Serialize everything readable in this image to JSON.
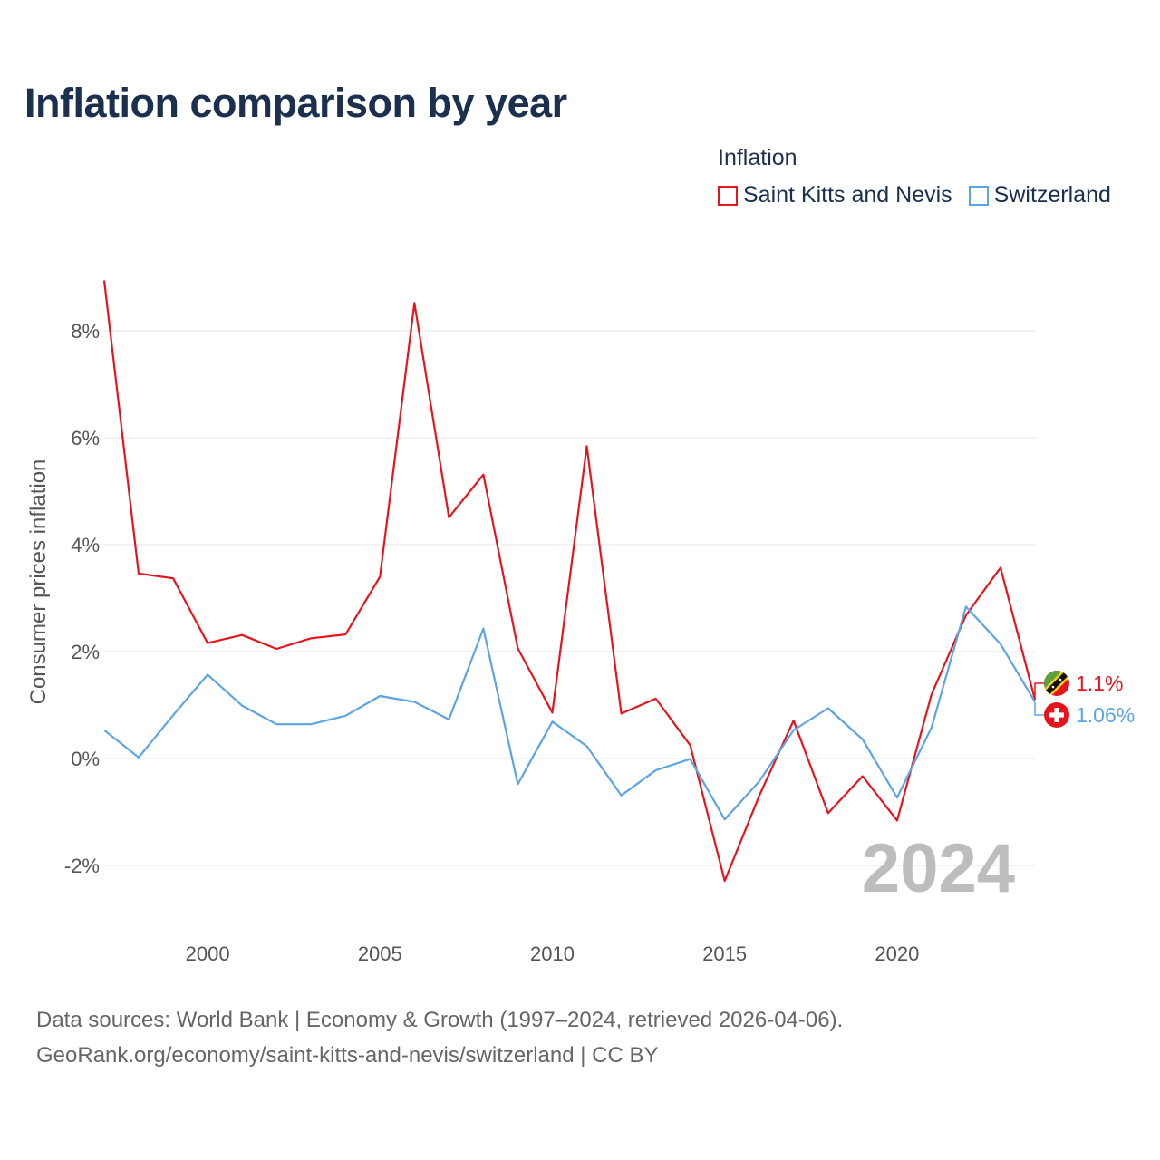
{
  "title": "Inflation comparison by year",
  "legend": {
    "title": "Inflation",
    "items": [
      {
        "label": "Saint Kitts and Nevis",
        "color": "#e8141c"
      },
      {
        "label": "Switzerland",
        "color": "#5ba4e5"
      }
    ]
  },
  "footer": {
    "line1": "Data sources: World Bank | Economy & Growth (1997–2024, retrieved 2026-04-06).",
    "line2": "GeoRank.org/economy/saint-kitts-and-nevis/switzerland | CC BY"
  },
  "chart_data": {
    "type": "line",
    "title": "Inflation comparison by year",
    "xlabel": "",
    "ylabel": "Consumer prices inflation",
    "x": [
      1997,
      1998,
      1999,
      2000,
      2001,
      2002,
      2003,
      2004,
      2005,
      2006,
      2007,
      2008,
      2009,
      2010,
      2011,
      2012,
      2013,
      2014,
      2015,
      2016,
      2017,
      2018,
      2019,
      2020,
      2021,
      2022,
      2023,
      2024
    ],
    "xlim": [
      1997,
      2024
    ],
    "ylim": [
      -3.0,
      9.0
    ],
    "xticks": [
      2000,
      2005,
      2010,
      2015,
      2020
    ],
    "xtick_labels": [
      "2000",
      "2005",
      "2010",
      "2015",
      "2020"
    ],
    "yticks": [
      -2,
      0,
      2,
      4,
      6,
      8
    ],
    "ytick_labels": [
      "-2%",
      "0%",
      "2%",
      "4%",
      "6%",
      "8%"
    ],
    "grid": true,
    "year_label": "2024",
    "series": [
      {
        "name": "Saint Kitts and Nevis",
        "color": "#e8141c",
        "end_label": "1.1%",
        "flag": "saint-kitts-and-nevis-flag",
        "values": [
          8.94,
          3.46,
          3.37,
          2.16,
          2.31,
          2.05,
          2.25,
          2.32,
          3.4,
          8.52,
          4.51,
          5.31,
          2.06,
          0.86,
          5.84,
          0.84,
          1.12,
          0.25,
          -2.29,
          -0.7,
          0.71,
          -1.02,
          -0.33,
          -1.16,
          1.2,
          2.68,
          3.57,
          1.1
        ]
      },
      {
        "name": "Switzerland",
        "color": "#5ba4e5",
        "end_label": "1.06%",
        "flag": "switzerland-flag",
        "values": [
          0.53,
          0.02,
          0.81,
          1.57,
          0.99,
          0.64,
          0.64,
          0.8,
          1.17,
          1.06,
          0.73,
          2.43,
          -0.48,
          0.69,
          0.23,
          -0.69,
          -0.22,
          -0.01,
          -1.14,
          -0.43,
          0.53,
          0.94,
          0.36,
          -0.73,
          0.58,
          2.84,
          2.14,
          1.06
        ]
      }
    ]
  }
}
